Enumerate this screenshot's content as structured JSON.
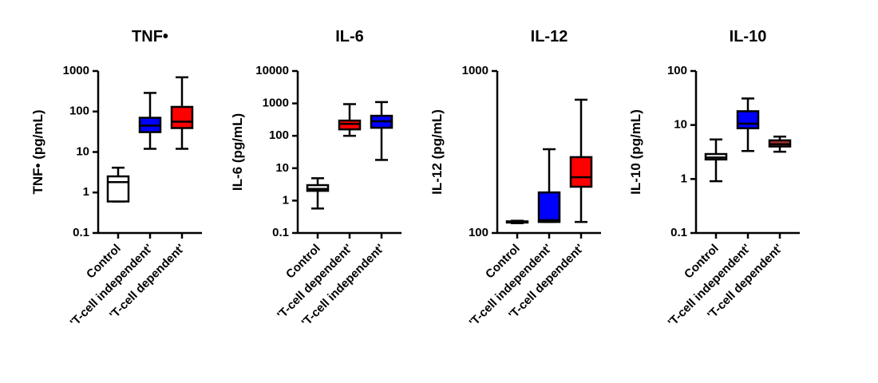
{
  "chart_data": [
    {
      "type": "box",
      "title": "TNF•",
      "y_label": "TNF•  (pg/mL)",
      "log": true,
      "categories": [
        "Control",
        "'T-cell independent'",
        "'T-cell dependent'"
      ],
      "colors": [
        "#ffffff",
        "#0000ff",
        "#ff0000"
      ],
      "values": [
        {
          "min": 0.6,
          "q1": 0.6,
          "median": 1.8,
          "q3": 2.5,
          "max": 4.1
        },
        {
          "min": 12,
          "q1": 31,
          "median": 45,
          "q3": 70,
          "max": 288
        },
        {
          "min": 12,
          "q1": 39,
          "median": 56,
          "q3": 130,
          "max": 700
        }
      ],
      "ylim": [
        0.1,
        1000
      ],
      "yticks": [
        0.1,
        1,
        10,
        100,
        1000
      ]
    },
    {
      "type": "box",
      "title": "IL-6",
      "y_label": "IL-6 (pg/mL)",
      "log": true,
      "categories": [
        "Control",
        "'T-cell dependent'",
        "'T-cell independent'"
      ],
      "colors": [
        "#ffffff",
        "#ff0000",
        "#0000ff"
      ],
      "values": [
        {
          "min": 0.57,
          "q1": 2,
          "median": 2.3,
          "q3": 3,
          "max": 4.9
        },
        {
          "min": 100,
          "q1": 158,
          "median": 234,
          "q3": 295,
          "max": 950
        },
        {
          "min": 18,
          "q1": 177,
          "median": 280,
          "q3": 415,
          "max": 1100
        }
      ],
      "ylim": [
        0.1,
        10000
      ],
      "yticks": [
        0.1,
        1,
        10,
        100,
        1000,
        10000
      ]
    },
    {
      "type": "box",
      "title": "IL-12",
      "y_label": "IL-12 (pg/mL)",
      "log": true,
      "categories": [
        "Control",
        "'T-cell independent'",
        "'T-cell dependent'"
      ],
      "colors": [
        "#000000",
        "#0000ff",
        "#ff0000"
      ],
      "values": [
        {
          "min": 115,
          "q1": 116,
          "median": 117,
          "q3": 118,
          "max": 119
        },
        {
          "min": 117,
          "q1": 117,
          "median": 120,
          "q3": 178,
          "max": 329
        },
        {
          "min": 117,
          "q1": 193,
          "median": 221,
          "q3": 294,
          "max": 665
        }
      ],
      "ylim": [
        100,
        1000
      ],
      "yticks": [
        100,
        1000
      ]
    },
    {
      "type": "box",
      "title": "IL-10",
      "y_label": "IL-10 (pg/mL)",
      "log": true,
      "categories": [
        "Control",
        "'T-cell independent'",
        "'T-cell dependent'"
      ],
      "colors": [
        "#ffffff",
        "#0000ff",
        "#a3302c"
      ],
      "values": [
        {
          "min": 0.91,
          "q1": 2.3,
          "median": 2.5,
          "q3": 2.9,
          "max": 5.4
        },
        {
          "min": 3.3,
          "q1": 8.7,
          "median": 10.6,
          "q3": 18,
          "max": 31
        },
        {
          "min": 3.2,
          "q1": 4,
          "median": 4.4,
          "q3": 5.2,
          "max": 6.1
        }
      ],
      "ylim": [
        0.1,
        100
      ],
      "yticks": [
        0.1,
        1,
        10,
        100
      ]
    }
  ]
}
